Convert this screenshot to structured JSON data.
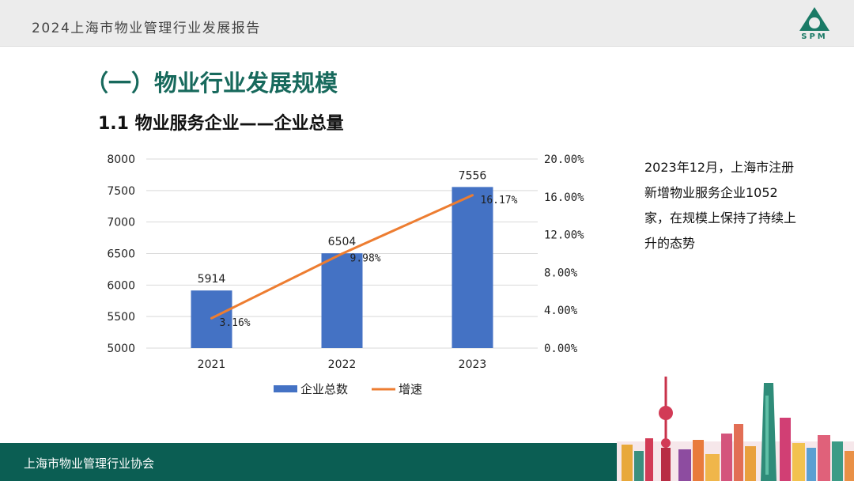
{
  "header": {
    "report_title": "2024上海市物业管理行业发展报告",
    "logo_text": "SPM"
  },
  "section_title": "（一）物业行业发展规模",
  "sub_title": "1.1 物业服务企业——企业总量",
  "side_note": "2023年12月，上海市注册新增物业服务企业1052家，在规模上保持了持续上升的态势",
  "footer": {
    "org_name": "上海市物业管理行业协会"
  },
  "colors": {
    "bar": "#4472c4",
    "line": "#ed7d31",
    "brand": "#0b5e53",
    "title": "#17695c"
  },
  "chart_data": {
    "type": "bar",
    "categories": [
      "2021",
      "2022",
      "2023"
    ],
    "series": [
      {
        "name": "企业总数",
        "type": "bar",
        "axis": "left",
        "values": [
          5914,
          6504,
          7556
        ],
        "labels": [
          "5914",
          "6504",
          "7556"
        ]
      },
      {
        "name": "增速",
        "type": "line",
        "axis": "right",
        "values": [
          3.16,
          9.98,
          16.17
        ],
        "labels": [
          "3.16%",
          "9.98%",
          "16.17%"
        ]
      }
    ],
    "y_left": {
      "min": 5000,
      "max": 8000,
      "ticks": [
        "5000",
        "5500",
        "6000",
        "6500",
        "7000",
        "7500",
        "8000"
      ]
    },
    "y_right": {
      "min": 0,
      "max": 20,
      "ticks": [
        "0.00%",
        "4.00%",
        "8.00%",
        "12.00%",
        "16.00%",
        "20.00%"
      ]
    },
    "grid": true,
    "legend_position": "bottom"
  }
}
